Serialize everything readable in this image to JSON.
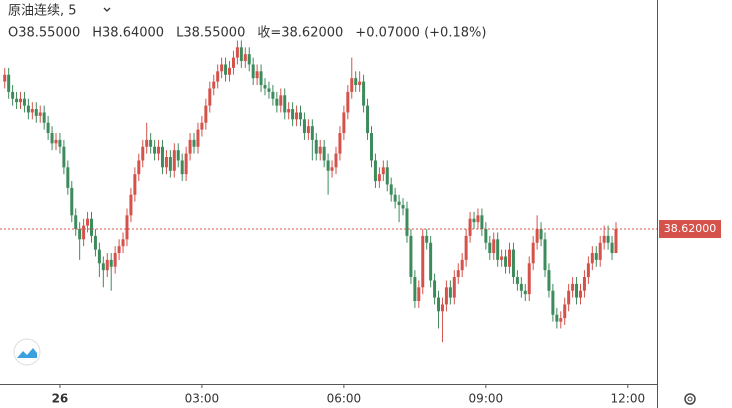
{
  "chart_data": {
    "type": "candlestick",
    "title": "原油连续, 5",
    "header": [
      "O38.55000",
      "H38.64000",
      "L38.55000",
      "收=38.62000",
      "+0.07000 (+0.18%)"
    ],
    "up_color": "#d5524b",
    "down_color": "#3d8b5c",
    "xlim": [
      -76,
      757
    ],
    "xticks": [
      {
        "value": 0,
        "label": "26"
      },
      {
        "value": 180,
        "label": "03:00"
      },
      {
        "value": 360,
        "label": "06:00"
      },
      {
        "value": 540,
        "label": "09:00"
      },
      {
        "value": 720,
        "label": "12:00"
      }
    ],
    "ylim": [
      38.168,
      39.288
    ],
    "last_price": {
      "value": 38.62,
      "label": "38.62000"
    },
    "x": [
      -70,
      -65,
      -60,
      -55,
      -50,
      -45,
      -40,
      -35,
      -30,
      -25,
      -20,
      -15,
      -10,
      -5,
      0,
      5,
      10,
      15,
      20,
      25,
      30,
      35,
      40,
      45,
      50,
      55,
      60,
      65,
      70,
      75,
      80,
      85,
      90,
      95,
      100,
      105,
      110,
      115,
      120,
      125,
      130,
      135,
      140,
      145,
      150,
      155,
      160,
      165,
      170,
      175,
      180,
      185,
      190,
      195,
      200,
      205,
      210,
      215,
      220,
      225,
      230,
      235,
      240,
      245,
      250,
      255,
      260,
      265,
      270,
      275,
      280,
      285,
      290,
      295,
      300,
      305,
      310,
      315,
      320,
      325,
      330,
      335,
      340,
      345,
      350,
      355,
      360,
      365,
      370,
      375,
      380,
      385,
      390,
      395,
      400,
      405,
      410,
      415,
      420,
      425,
      430,
      435,
      440,
      445,
      450,
      455,
      460,
      465,
      470,
      475,
      480,
      485,
      490,
      495,
      500,
      505,
      510,
      515,
      520,
      525,
      530,
      535,
      540,
      545,
      550,
      555,
      560,
      565,
      570,
      575,
      580,
      585,
      590,
      595,
      600,
      605,
      610,
      615,
      620,
      625,
      630,
      635,
      640,
      645,
      650,
      655,
      660,
      665,
      670,
      675,
      680,
      685,
      690,
      695,
      700,
      705
    ],
    "open": [
      39.05,
      39.07,
      39.02,
      39.0,
      38.99,
      39.0,
      38.98,
      38.96,
      38.97,
      38.95,
      38.96,
      38.93,
      38.9,
      38.87,
      38.88,
      38.86,
      38.8,
      38.74,
      38.66,
      38.62,
      38.59,
      38.63,
      38.65,
      38.6,
      38.56,
      38.52,
      38.5,
      38.53,
      38.51,
      38.55,
      38.57,
      38.59,
      38.66,
      38.72,
      38.78,
      38.82,
      38.86,
      38.88,
      38.86,
      38.84,
      38.86,
      38.8,
      38.83,
      38.79,
      38.85,
      38.82,
      38.78,
      38.84,
      38.88,
      38.86,
      38.91,
      38.93,
      38.98,
      39.03,
      39.05,
      39.08,
      39.1,
      39.07,
      39.09,
      39.12,
      39.15,
      39.11,
      39.13,
      39.1,
      39.06,
      39.08,
      39.04,
      39.03,
      39.02,
      39.0,
      38.98,
      39.01,
      38.96,
      38.97,
      38.94,
      38.96,
      38.94,
      38.9,
      38.92,
      38.88,
      38.84,
      38.86,
      38.82,
      38.79,
      38.8,
      38.84,
      38.9,
      38.96,
      39.02,
      39.06,
      39.04,
      39.05,
      38.98,
      38.9,
      38.82,
      38.76,
      38.78,
      38.8,
      38.75,
      38.72,
      38.7,
      38.69,
      38.68,
      38.6,
      38.48,
      38.41,
      38.45,
      38.6,
      38.58,
      38.47,
      38.42,
      38.38,
      38.4,
      38.45,
      38.42,
      38.48,
      38.5,
      38.53,
      38.6,
      38.65,
      38.64,
      38.66,
      38.62,
      38.58,
      38.55,
      38.59,
      38.53,
      38.54,
      38.51,
      38.56,
      38.48,
      38.46,
      38.44,
      38.43,
      38.52,
      38.58,
      38.62,
      38.59,
      38.5,
      38.44,
      38.37,
      38.35,
      38.36,
      38.4,
      38.44,
      38.46,
      38.42,
      38.44,
      38.48,
      38.52,
      38.55,
      38.53,
      38.58,
      38.6,
      38.58,
      38.55
    ],
    "high": [
      39.09,
      39.09,
      39.04,
      39.02,
      39.02,
      39.02,
      39.0,
      38.99,
      38.99,
      38.98,
      38.98,
      38.95,
      38.92,
      38.9,
      38.9,
      38.88,
      38.82,
      38.76,
      38.68,
      38.64,
      38.65,
      38.67,
      38.67,
      38.62,
      38.58,
      38.54,
      38.55,
      38.55,
      38.57,
      38.59,
      38.61,
      38.68,
      38.74,
      38.8,
      38.84,
      38.88,
      38.93,
      38.9,
      38.88,
      38.88,
      38.88,
      38.85,
      38.85,
      38.87,
      38.87,
      38.84,
      38.86,
      38.9,
      38.9,
      38.93,
      38.95,
      39.0,
      39.05,
      39.07,
      39.1,
      39.12,
      39.12,
      39.11,
      39.14,
      39.17,
      39.17,
      39.15,
      39.15,
      39.12,
      39.1,
      39.1,
      39.06,
      39.05,
      39.04,
      39.02,
      39.03,
      39.03,
      38.99,
      38.99,
      38.98,
      38.98,
      38.96,
      38.94,
      38.94,
      38.9,
      38.88,
      38.88,
      38.84,
      38.82,
      38.86,
      38.92,
      38.98,
      39.04,
      39.12,
      39.08,
      39.08,
      39.07,
      39.0,
      38.92,
      38.84,
      38.8,
      38.82,
      38.82,
      38.77,
      38.74,
      38.72,
      38.71,
      38.7,
      38.62,
      38.5,
      38.47,
      38.62,
      38.62,
      38.6,
      38.49,
      38.44,
      38.42,
      38.47,
      38.47,
      38.5,
      38.52,
      38.55,
      38.62,
      38.67,
      38.67,
      38.68,
      38.68,
      38.64,
      38.6,
      38.61,
      38.61,
      38.56,
      38.56,
      38.58,
      38.58,
      38.5,
      38.48,
      38.46,
      38.54,
      38.6,
      38.66,
      38.64,
      38.61,
      38.52,
      38.46,
      38.39,
      38.38,
      38.42,
      38.46,
      38.48,
      38.48,
      38.46,
      38.5,
      38.54,
      38.57,
      38.57,
      38.6,
      38.63,
      38.63,
      38.6,
      38.64
    ],
    "low": [
      39.03,
      39.0,
      38.98,
      38.97,
      38.97,
      38.96,
      38.94,
      38.94,
      38.93,
      38.93,
      38.91,
      38.88,
      38.85,
      38.85,
      38.84,
      38.78,
      38.72,
      38.64,
      38.6,
      38.53,
      38.57,
      38.61,
      38.58,
      38.54,
      38.48,
      38.45,
      38.48,
      38.44,
      38.49,
      38.53,
      38.55,
      38.57,
      38.64,
      38.7,
      38.76,
      38.8,
      38.84,
      38.84,
      38.82,
      38.82,
      38.78,
      38.78,
      38.77,
      38.77,
      38.8,
      38.76,
      38.76,
      38.82,
      38.84,
      38.84,
      38.89,
      38.91,
      38.96,
      39.01,
      39.03,
      39.06,
      39.05,
      39.05,
      39.07,
      39.1,
      39.09,
      39.09,
      39.08,
      39.04,
      39.04,
      39.02,
      39.01,
      39.0,
      38.98,
      38.96,
      38.96,
      38.94,
      38.94,
      38.92,
      38.92,
      38.92,
      38.88,
      38.88,
      38.82,
      38.82,
      38.82,
      38.8,
      38.72,
      38.77,
      38.78,
      38.82,
      38.88,
      38.94,
      39.0,
      39.02,
      39.02,
      38.96,
      38.88,
      38.8,
      38.74,
      38.74,
      38.76,
      38.73,
      38.7,
      38.68,
      38.64,
      38.66,
      38.58,
      38.46,
      38.39,
      38.39,
      38.43,
      38.56,
      38.45,
      38.4,
      38.33,
      38.29,
      38.38,
      38.4,
      38.4,
      38.46,
      38.48,
      38.51,
      38.58,
      38.62,
      38.62,
      38.6,
      38.56,
      38.53,
      38.53,
      38.51,
      38.51,
      38.49,
      38.49,
      38.46,
      38.44,
      38.42,
      38.41,
      38.41,
      38.5,
      38.56,
      38.57,
      38.48,
      38.42,
      38.35,
      38.33,
      38.33,
      38.34,
      38.38,
      38.42,
      38.4,
      38.4,
      38.42,
      38.46,
      38.5,
      38.51,
      38.51,
      38.56,
      38.56,
      38.53,
      38.55
    ],
    "close": [
      39.07,
      39.02,
      39.0,
      38.99,
      39.0,
      38.98,
      38.96,
      38.97,
      38.95,
      38.96,
      38.93,
      38.9,
      38.87,
      38.88,
      38.86,
      38.8,
      38.74,
      38.66,
      38.62,
      38.59,
      38.63,
      38.65,
      38.6,
      38.56,
      38.52,
      38.5,
      38.53,
      38.51,
      38.55,
      38.57,
      38.59,
      38.66,
      38.72,
      38.78,
      38.82,
      38.86,
      38.88,
      38.86,
      38.84,
      38.86,
      38.8,
      38.83,
      38.79,
      38.85,
      38.82,
      38.78,
      38.84,
      38.88,
      38.86,
      38.91,
      38.93,
      38.98,
      39.03,
      39.05,
      39.08,
      39.1,
      39.07,
      39.09,
      39.12,
      39.15,
      39.11,
      39.13,
      39.1,
      39.06,
      39.08,
      39.04,
      39.03,
      39.02,
      39.0,
      38.98,
      39.01,
      38.96,
      38.97,
      38.94,
      38.96,
      38.94,
      38.9,
      38.92,
      38.88,
      38.84,
      38.86,
      38.82,
      38.79,
      38.8,
      38.84,
      38.9,
      38.96,
      39.02,
      39.06,
      39.04,
      39.05,
      38.98,
      38.9,
      38.82,
      38.76,
      38.78,
      38.8,
      38.75,
      38.72,
      38.7,
      38.69,
      38.68,
      38.6,
      38.48,
      38.41,
      38.45,
      38.6,
      38.58,
      38.47,
      38.42,
      38.38,
      38.4,
      38.45,
      38.42,
      38.48,
      38.5,
      38.53,
      38.6,
      38.65,
      38.64,
      38.66,
      38.62,
      38.58,
      38.55,
      38.59,
      38.53,
      38.54,
      38.51,
      38.56,
      38.48,
      38.46,
      38.44,
      38.43,
      38.52,
      38.58,
      38.62,
      38.59,
      38.5,
      38.44,
      38.37,
      38.35,
      38.36,
      38.4,
      38.44,
      38.46,
      38.42,
      38.44,
      38.48,
      38.52,
      38.55,
      38.53,
      38.58,
      38.6,
      38.58,
      38.55,
      38.62
    ]
  }
}
